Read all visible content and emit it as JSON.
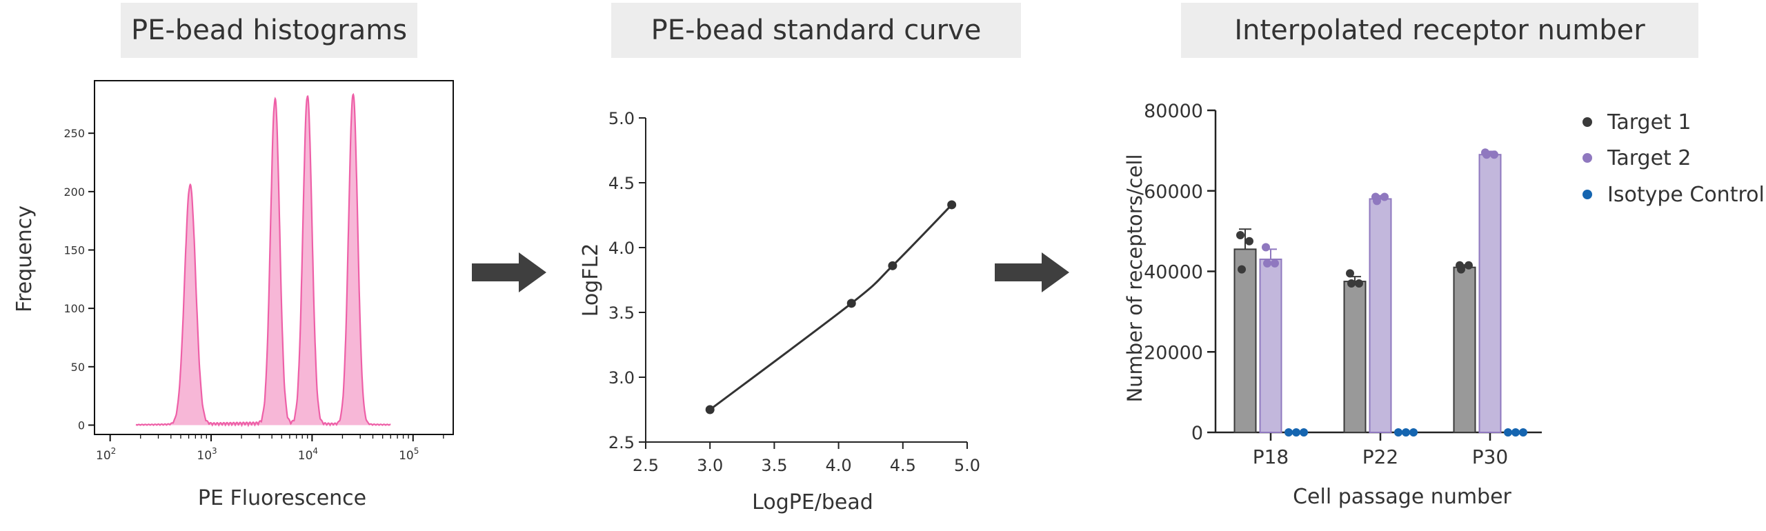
{
  "titles": {
    "panel1": "PE-bead histograms",
    "panel2": "PE-bead standard curve",
    "panel3": "Interpolated receptor number"
  },
  "colors": {
    "histogram": "#ee5fa7",
    "curve": "#333333",
    "target1": "#3a3a3a",
    "target1_bar": "#999999",
    "target2": "#8f78bf",
    "target2_bar": "#c2b7dc",
    "isotype": "#1565b0",
    "arrow": "#3f3f3f"
  },
  "chart_data": [
    {
      "type": "area",
      "xlabel": "PE Fluorescence",
      "ylabel": "Frequency",
      "xscale": "log",
      "xlim": [
        70,
        250000
      ],
      "ylim": [
        -8,
        295
      ],
      "xticks": [
        "10^2",
        "10^3",
        "10^4",
        "10^5"
      ],
      "yticks": [
        0,
        50,
        100,
        150,
        200,
        250
      ],
      "peaks": [
        {
          "center": 620,
          "height": 205
        },
        {
          "center": 4300,
          "height": 278
        },
        {
          "center": 9000,
          "height": 281
        },
        {
          "center": 25500,
          "height": 283
        }
      ]
    },
    {
      "type": "line",
      "xlabel": "LogPE/bead",
      "ylabel": "LogFL2",
      "xlim": [
        2.5,
        5.0
      ],
      "ylim": [
        2.5,
        5.0
      ],
      "xticks": [
        "2.5",
        "3.0",
        "3.5",
        "4.0",
        "4.5",
        "5.0"
      ],
      "yticks": [
        "2.5",
        "3.0",
        "3.5",
        "4.0",
        "4.5",
        "5.0"
      ],
      "points": [
        {
          "x": 3.0,
          "y": 2.75
        },
        {
          "x": 4.1,
          "y": 3.57
        },
        {
          "x": 4.42,
          "y": 3.86
        },
        {
          "x": 4.88,
          "y": 4.33
        }
      ]
    },
    {
      "type": "bar",
      "xlabel": "Cell passage number",
      "ylabel": "Number of receptors/cell",
      "ylim": [
        0,
        80000
      ],
      "yticks": [
        "0",
        "20000",
        "40000",
        "60000",
        "80000"
      ],
      "categories": [
        "P18",
        "P22",
        "P30"
      ],
      "series": [
        {
          "name": "Target 1",
          "values": [
            45500,
            37500,
            41000
          ],
          "errors": [
            5000,
            1200,
            600
          ],
          "points": [
            [
              49000,
              47500,
              40500
            ],
            [
              39500,
              37000,
              37000
            ],
            [
              41500,
              41500,
              40500
            ]
          ]
        },
        {
          "name": "Target 2",
          "values": [
            43000,
            58000,
            69000
          ],
          "errors": [
            2500,
            800,
            800
          ],
          "points": [
            [
              46000,
              42000,
              42000
            ],
            [
              58500,
              58500,
              57500
            ],
            [
              69500,
              69000,
              69000
            ]
          ]
        },
        {
          "name": "Isotype Control",
          "values": [
            0,
            0,
            0
          ],
          "errors": [
            0,
            0,
            0
          ],
          "points": [
            [
              0,
              0,
              0
            ],
            [
              0,
              0,
              0
            ],
            [
              0,
              0,
              0
            ]
          ]
        }
      ]
    }
  ]
}
